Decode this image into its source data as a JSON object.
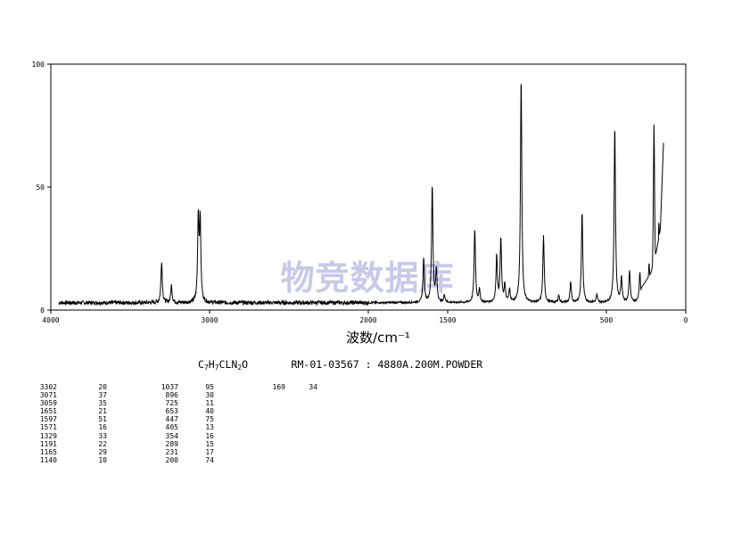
{
  "chart_data": {
    "type": "line",
    "title": "",
    "xlabel": "波数/cm⁻¹",
    "ylabel": "",
    "xlim": [
      4000,
      0
    ],
    "ylim": [
      0,
      100
    ],
    "x_ticks": [
      "4000",
      "3000",
      "2000",
      "1500",
      "500",
      "0"
    ],
    "x_tick_values": [
      4000,
      3000,
      2000,
      1500,
      500,
      0
    ],
    "y_ticks": [
      "0",
      "50",
      "100"
    ],
    "y_tick_values": [
      0,
      50,
      100
    ],
    "grid": false,
    "baseline": 3,
    "noise_range": [
      3950,
      2000
    ],
    "peaks": [
      {
        "x": 3302,
        "y": 20
      },
      {
        "x": 3240,
        "y": 10
      },
      {
        "x": 3071,
        "y": 37
      },
      {
        "x": 3059,
        "y": 35
      },
      {
        "x": 1651,
        "y": 21
      },
      {
        "x": 1597,
        "y": 51
      },
      {
        "x": 1571,
        "y": 16
      },
      {
        "x": 1520,
        "y": 6
      },
      {
        "x": 1329,
        "y": 33
      },
      {
        "x": 1300,
        "y": 8
      },
      {
        "x": 1191,
        "y": 22
      },
      {
        "x": 1165,
        "y": 29
      },
      {
        "x": 1140,
        "y": 10
      },
      {
        "x": 1110,
        "y": 8
      },
      {
        "x": 1037,
        "y": 95
      },
      {
        "x": 896,
        "y": 30
      },
      {
        "x": 800,
        "y": 6
      },
      {
        "x": 725,
        "y": 11
      },
      {
        "x": 653,
        "y": 40
      },
      {
        "x": 560,
        "y": 6
      },
      {
        "x": 447,
        "y": 75
      },
      {
        "x": 405,
        "y": 13
      },
      {
        "x": 354,
        "y": 16
      },
      {
        "x": 289,
        "y": 15
      },
      {
        "x": 231,
        "y": 17
      },
      {
        "x": 200,
        "y": 74
      },
      {
        "x": 169,
        "y": 34
      }
    ],
    "tail": [
      {
        "x": 280,
        "y": 9
      },
      {
        "x": 250,
        "y": 12
      },
      {
        "x": 220,
        "y": 15
      },
      {
        "x": 185,
        "y": 24
      },
      {
        "x": 160,
        "y": 33
      },
      {
        "x": 140,
        "y": 68
      }
    ],
    "annotations": [
      "物竞数据库"
    ]
  },
  "info": {
    "formula_parts": [
      {
        "t": "C",
        "sub": false
      },
      {
        "t": "7",
        "sub": true
      },
      {
        "t": "H",
        "sub": false
      },
      {
        "t": "7",
        "sub": true
      },
      {
        "t": "CLN",
        "sub": false
      },
      {
        "t": "2",
        "sub": true
      },
      {
        "t": "O",
        "sub": false
      }
    ],
    "sample_line": "RM-01-03567 : 4880A.200M.POWDER"
  },
  "peak_table": {
    "col1_wavenumbers": [
      "3302",
      "3071",
      "3059",
      "1651",
      "1597",
      "1571",
      "1329",
      "1191",
      "1165",
      "1140"
    ],
    "col1_intensities": [
      "20",
      "37",
      "35",
      "21",
      "51",
      "16",
      "33",
      "22",
      "29",
      "10"
    ],
    "col2_wavenumbers": [
      "1037",
      "896",
      "725",
      "653",
      "447",
      "405",
      "354",
      "289",
      "231",
      "200"
    ],
    "col2_intensities": [
      "95",
      "30",
      "11",
      "40",
      "75",
      "13",
      "16",
      "15",
      "17",
      "74"
    ],
    "col3_wavenumbers": [
      "169"
    ],
    "col3_intensities": [
      "34"
    ]
  }
}
